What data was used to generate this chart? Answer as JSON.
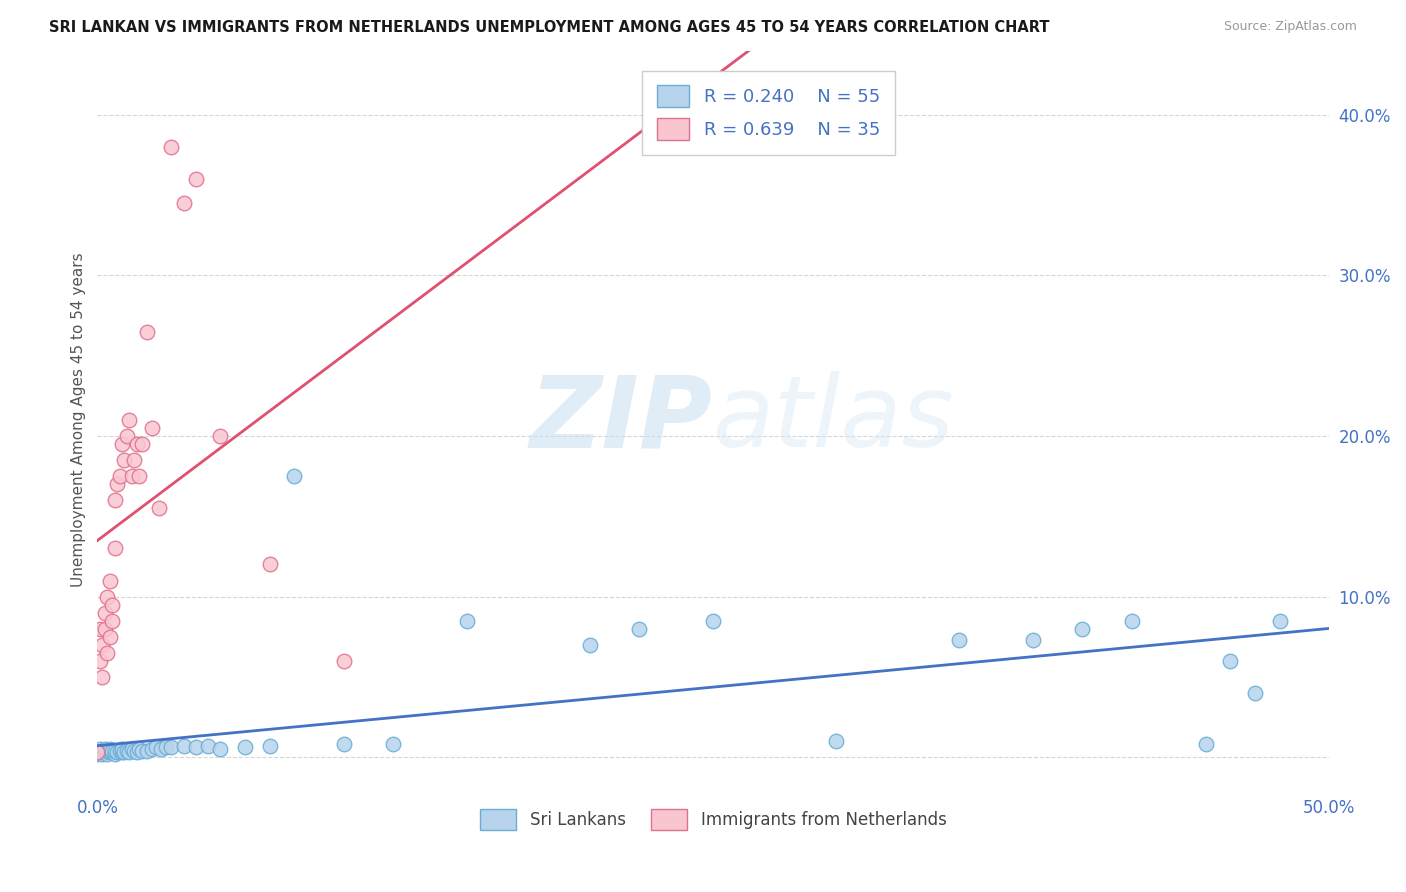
{
  "title": "SRI LANKAN VS IMMIGRANTS FROM NETHERLANDS UNEMPLOYMENT AMONG AGES 45 TO 54 YEARS CORRELATION CHART",
  "source": "Source: ZipAtlas.com",
  "ylabel": "Unemployment Among Ages 45 to 54 years",
  "xlim": [
    0.0,
    0.5
  ],
  "ylim": [
    -0.02,
    0.44
  ],
  "xticks": [
    0.0,
    0.1,
    0.2,
    0.3,
    0.4,
    0.5
  ],
  "xticklabels": [
    "0.0%",
    "",
    "",
    "",
    "",
    "50.0%"
  ],
  "yticks": [
    0.0,
    0.1,
    0.2,
    0.3,
    0.4
  ],
  "yticklabels": [
    "",
    "10.0%",
    "20.0%",
    "30.0%",
    "40.0%"
  ],
  "sri_lanka_color": "#b8d4ed",
  "sri_lanka_edge": "#6aaed6",
  "netherlands_color": "#f9c6d0",
  "netherlands_edge": "#e07090",
  "sri_lanka_R": 0.24,
  "sri_lanka_N": 55,
  "netherlands_R": 0.639,
  "netherlands_N": 35,
  "legend_label_sri": "Sri Lankans",
  "legend_label_neth": "Immigrants from Netherlands",
  "watermark_zip": "ZIP",
  "watermark_atlas": "atlas",
  "line_sri_color": "#4472c4",
  "line_neth_color": "#e05070",
  "sri_lanka_x": [
    0.0,
    0.001,
    0.001,
    0.002,
    0.002,
    0.003,
    0.003,
    0.004,
    0.004,
    0.005,
    0.005,
    0.006,
    0.006,
    0.007,
    0.007,
    0.008,
    0.009,
    0.01,
    0.01,
    0.011,
    0.012,
    0.013,
    0.014,
    0.015,
    0.016,
    0.017,
    0.018,
    0.02,
    0.022,
    0.024,
    0.026,
    0.028,
    0.03,
    0.035,
    0.04,
    0.045,
    0.05,
    0.06,
    0.07,
    0.08,
    0.1,
    0.12,
    0.15,
    0.2,
    0.22,
    0.25,
    0.3,
    0.35,
    0.38,
    0.4,
    0.42,
    0.45,
    0.46,
    0.47,
    0.48
  ],
  "sri_lanka_y": [
    0.002,
    0.003,
    0.005,
    0.002,
    0.004,
    0.003,
    0.005,
    0.002,
    0.004,
    0.003,
    0.005,
    0.003,
    0.004,
    0.002,
    0.004,
    0.003,
    0.004,
    0.003,
    0.005,
    0.003,
    0.004,
    0.003,
    0.005,
    0.004,
    0.003,
    0.005,
    0.004,
    0.004,
    0.005,
    0.006,
    0.005,
    0.006,
    0.006,
    0.007,
    0.006,
    0.007,
    0.005,
    0.006,
    0.007,
    0.175,
    0.008,
    0.008,
    0.085,
    0.07,
    0.08,
    0.085,
    0.01,
    0.073,
    0.073,
    0.08,
    0.085,
    0.008,
    0.06,
    0.04,
    0.085
  ],
  "netherlands_x": [
    0.0,
    0.001,
    0.001,
    0.002,
    0.002,
    0.003,
    0.003,
    0.004,
    0.004,
    0.005,
    0.005,
    0.006,
    0.006,
    0.007,
    0.007,
    0.008,
    0.009,
    0.01,
    0.011,
    0.012,
    0.013,
    0.014,
    0.015,
    0.016,
    0.017,
    0.018,
    0.02,
    0.022,
    0.025,
    0.03,
    0.035,
    0.04,
    0.05,
    0.07,
    0.1
  ],
  "netherlands_y": [
    0.003,
    0.06,
    0.08,
    0.05,
    0.07,
    0.09,
    0.08,
    0.065,
    0.1,
    0.11,
    0.075,
    0.085,
    0.095,
    0.13,
    0.16,
    0.17,
    0.175,
    0.195,
    0.185,
    0.2,
    0.21,
    0.175,
    0.185,
    0.195,
    0.175,
    0.195,
    0.265,
    0.205,
    0.155,
    0.38,
    0.345,
    0.36,
    0.2,
    0.12,
    0.06
  ]
}
